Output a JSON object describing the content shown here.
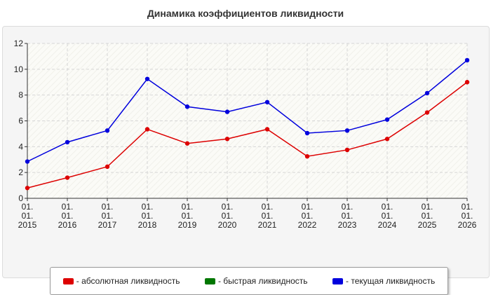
{
  "chart_data": {
    "type": "line",
    "title": "Динамика коэффициентов ликвидности",
    "x_tick_lines": [
      [
        "01.",
        "01.",
        "2015"
      ],
      [
        "01.",
        "01.",
        "2016"
      ],
      [
        "01.",
        "01.",
        "2017"
      ],
      [
        "01.",
        "01.",
        "2018"
      ],
      [
        "01.",
        "01.",
        "2019"
      ],
      [
        "01.",
        "01.",
        "2020"
      ],
      [
        "01.",
        "01.",
        "2021"
      ],
      [
        "01.",
        "01.",
        "2022"
      ],
      [
        "01.",
        "01.",
        "2023"
      ],
      [
        "01.",
        "01.",
        "2024"
      ],
      [
        "01.",
        "01.",
        "2025"
      ],
      [
        "01.",
        "01.",
        "2026"
      ]
    ],
    "ylim": [
      0,
      12
    ],
    "y_ticks": [
      0,
      2,
      4,
      6,
      8,
      10,
      12
    ],
    "grid": true,
    "legend_position": "bottom",
    "series": [
      {
        "name": "- абсолютная ликвидность",
        "color": "#dd0000",
        "values": [
          0.8,
          1.6,
          2.45,
          5.35,
          4.25,
          4.6,
          5.35,
          3.25,
          3.75,
          4.6,
          6.65,
          9.0
        ]
      },
      {
        "name": "- быстрая ликвидность",
        "color": "#007700",
        "values": []
      },
      {
        "name": "- текущая ликвидность",
        "color": "#0000dd",
        "values": [
          2.85,
          4.35,
          5.25,
          9.25,
          7.1,
          6.7,
          7.45,
          5.05,
          5.25,
          6.1,
          8.15,
          10.7
        ]
      }
    ]
  }
}
